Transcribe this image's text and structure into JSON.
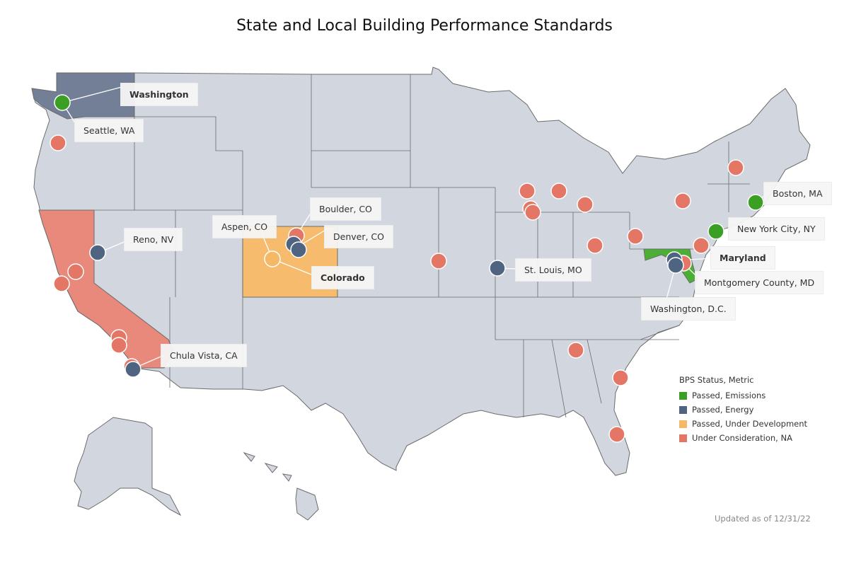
{
  "title": "State and Local Building Performance Standards",
  "colors": {
    "land": "#d2d6df",
    "border": "#6b6b6b",
    "emissions": "#3a9f23",
    "energy": "#4f6480",
    "under_development": "#f5b866",
    "under_consideration": "#e47666",
    "washington_state": "#727f96",
    "california_state": "#e8897c",
    "maryland_state": "#4caf35",
    "colorado_state": "#f7bb6d"
  },
  "legend": {
    "title": "BPS Status, Metric",
    "items": [
      {
        "label": "Passed, Emissions",
        "color": "#3a9f23"
      },
      {
        "label": "Passed, Energy",
        "color": "#4f6480"
      },
      {
        "label": "Passed, Under Development",
        "color": "#f5b866"
      },
      {
        "label": "Under Consideration, NA",
        "color": "#e47666"
      }
    ]
  },
  "labels": {
    "washington": "Washington",
    "seattle": "Seattle, WA",
    "reno": "Reno, NV",
    "chula_vista": "Chula Vista, CA",
    "aspen": "Aspen, CO",
    "boulder": "Boulder, CO",
    "denver": "Denver, CO",
    "colorado": "Colorado",
    "st_louis": "St. Louis, MO",
    "boston": "Boston, MA",
    "nyc": "New York City, NY",
    "maryland": "Maryland",
    "montgomery": "Montgomery County, MD",
    "dc": "Washington, D.C."
  },
  "updated": "Updated as of 12/31/22"
}
